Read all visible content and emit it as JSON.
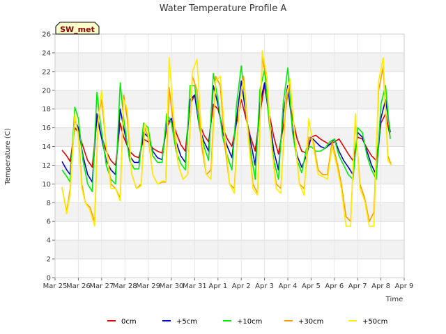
{
  "chart_data": {
    "type": "line",
    "title": "Water Temperature Profile A",
    "badge": "SW_met",
    "xlabel": "Time",
    "ylabel": "Temperature (C)",
    "ylim": [
      0,
      26
    ],
    "yticks": [
      0,
      2,
      4,
      6,
      8,
      10,
      12,
      14,
      16,
      18,
      20,
      22,
      24,
      26
    ],
    "xlim": [
      0,
      15
    ],
    "xtick_labels": [
      "Mar 25",
      "Mar 26",
      "Mar 27",
      "Mar 28",
      "Mar 29",
      "Mar 30",
      "Mar 31",
      "Apr 1",
      "Apr 2",
      "Apr 3",
      "Apr 4",
      "Apr 5",
      "Apr 6",
      "Apr 7",
      "Apr 8",
      "Apr 9"
    ],
    "x_unit": "days since Mar 25",
    "grid": true,
    "legend_position": "bottom",
    "series": [
      {
        "name": "0cm",
        "color": "#e00000",
        "x": [
          0.3,
          0.5,
          0.65,
          0.85,
          1.0,
          1.2,
          1.4,
          1.6,
          1.8,
          1.95,
          2.2,
          2.4,
          2.6,
          2.8,
          2.95,
          3.2,
          3.4,
          3.6,
          3.8,
          4.0,
          4.2,
          4.4,
          4.6,
          4.8,
          5.0,
          5.2,
          5.4,
          5.6,
          5.8,
          6.0,
          6.2,
          6.4,
          6.6,
          6.8,
          7.0,
          7.2,
          7.4,
          7.6,
          7.8,
          8.0,
          8.2,
          8.4,
          8.6,
          8.8,
          9.0,
          9.2,
          9.4,
          9.6,
          9.8,
          10.0,
          10.2,
          10.4,
          10.6,
          10.8,
          11.0,
          11.2,
          11.4,
          11.6,
          11.8,
          12.0,
          12.2,
          12.4,
          12.6,
          12.8,
          13.0,
          13.2,
          13.4,
          13.6,
          13.8,
          14.0,
          14.2,
          14.4
        ],
        "y": [
          13.6,
          13.0,
          12.4,
          16.0,
          15.5,
          14.0,
          12.5,
          11.8,
          17.0,
          15.5,
          13.5,
          12.5,
          12.0,
          16.5,
          15.0,
          13.5,
          13.0,
          12.8,
          14.8,
          14.5,
          13.8,
          13.5,
          13.3,
          16.0,
          17.0,
          15.5,
          14.2,
          13.5,
          18.5,
          19.5,
          16.5,
          15.2,
          14.5,
          18.5,
          18.0,
          16.0,
          14.8,
          14.0,
          16.5,
          19.0,
          17.0,
          15.0,
          13.5,
          17.5,
          20.5,
          17.5,
          15.0,
          13.2,
          16.0,
          20.0,
          17.0,
          14.8,
          13.5,
          13.3,
          15.0,
          15.2,
          14.8,
          14.5,
          14.2,
          14.5,
          14.8,
          14.0,
          13.2,
          12.5,
          15.0,
          14.8,
          13.8,
          13.0,
          12.5,
          16.5,
          17.5,
          15.0
        ]
      },
      {
        "name": "+5cm",
        "color": "#0000cc",
        "x": [
          0.3,
          0.5,
          0.65,
          0.85,
          1.0,
          1.2,
          1.4,
          1.6,
          1.8,
          1.95,
          2.2,
          2.4,
          2.6,
          2.8,
          2.95,
          3.2,
          3.4,
          3.6,
          3.8,
          4.0,
          4.2,
          4.4,
          4.6,
          4.8,
          5.0,
          5.2,
          5.4,
          5.6,
          5.8,
          6.0,
          6.2,
          6.4,
          6.6,
          6.8,
          7.0,
          7.2,
          7.4,
          7.6,
          7.8,
          8.0,
          8.2,
          8.4,
          8.6,
          8.8,
          9.0,
          9.2,
          9.4,
          9.6,
          9.8,
          10.0,
          10.2,
          10.4,
          10.6,
          10.8,
          11.0,
          11.2,
          11.4,
          11.6,
          11.8,
          12.0,
          12.2,
          12.4,
          12.6,
          12.8,
          13.0,
          13.2,
          13.4,
          13.6,
          13.8,
          14.0,
          14.2,
          14.4
        ],
        "y": [
          12.4,
          11.5,
          11.0,
          16.8,
          16.0,
          13.0,
          11.0,
          10.2,
          17.5,
          15.5,
          12.5,
          11.5,
          11.0,
          18.0,
          16.0,
          13.0,
          12.3,
          12.3,
          15.5,
          15.0,
          13.5,
          12.8,
          12.6,
          16.5,
          17.0,
          14.5,
          13.0,
          12.3,
          19.0,
          19.5,
          16.0,
          14.5,
          13.5,
          20.5,
          18.5,
          15.5,
          14.0,
          12.8,
          17.0,
          21.0,
          17.5,
          14.5,
          12.0,
          18.5,
          20.8,
          17.0,
          13.5,
          11.5,
          17.5,
          20.5,
          16.0,
          13.0,
          11.8,
          13.0,
          15.0,
          14.5,
          14.0,
          13.8,
          14.2,
          14.8,
          13.5,
          12.5,
          11.8,
          11.0,
          15.5,
          15.0,
          13.5,
          12.0,
          11.0,
          17.0,
          19.0,
          15.5
        ]
      },
      {
        "name": "+10cm",
        "color": "#00ee00",
        "x": [
          0.3,
          0.5,
          0.65,
          0.85,
          1.0,
          1.2,
          1.4,
          1.6,
          1.8,
          1.95,
          2.2,
          2.4,
          2.6,
          2.8,
          2.95,
          3.2,
          3.4,
          3.6,
          3.8,
          4.0,
          4.2,
          4.4,
          4.6,
          4.8,
          5.0,
          5.2,
          5.4,
          5.6,
          5.8,
          6.0,
          6.2,
          6.4,
          6.6,
          6.8,
          7.0,
          7.2,
          7.4,
          7.6,
          7.8,
          8.0,
          8.2,
          8.4,
          8.6,
          8.8,
          9.0,
          9.2,
          9.4,
          9.6,
          9.8,
          10.0,
          10.2,
          10.4,
          10.6,
          10.8,
          11.0,
          11.2,
          11.4,
          11.6,
          11.8,
          12.0,
          12.2,
          12.4,
          12.6,
          12.8,
          13.0,
          13.2,
          13.4,
          13.6,
          13.8,
          14.0,
          14.2,
          14.4
        ],
        "y": [
          11.5,
          10.8,
          10.2,
          18.2,
          17.0,
          12.5,
          10.0,
          9.2,
          19.8,
          16.5,
          12.0,
          10.5,
          10.0,
          20.8,
          17.0,
          12.5,
          11.6,
          11.6,
          16.5,
          16.0,
          13.0,
          12.3,
          12.3,
          17.5,
          16.5,
          13.5,
          12.2,
          11.5,
          20.5,
          20.5,
          16.0,
          14.0,
          12.5,
          21.8,
          19.0,
          15.0,
          13.0,
          11.5,
          18.5,
          22.6,
          18.0,
          13.5,
          10.5,
          20.0,
          22.2,
          16.5,
          12.5,
          10.5,
          18.5,
          22.4,
          15.5,
          12.5,
          11.2,
          13.8,
          14.0,
          13.5,
          13.5,
          13.8,
          14.5,
          14.8,
          13.0,
          12.0,
          11.0,
          10.5,
          16.0,
          15.5,
          13.0,
          11.5,
          10.5,
          18.5,
          20.5,
          14.8
        ]
      },
      {
        "name": "+30cm",
        "color": "#ff9900",
        "x": [
          0.3,
          0.5,
          0.65,
          0.85,
          1.0,
          1.15,
          1.3,
          1.5,
          1.7,
          1.85,
          2.0,
          2.2,
          2.4,
          2.6,
          2.8,
          2.95,
          3.1,
          3.3,
          3.5,
          3.7,
          3.85,
          4.0,
          4.2,
          4.4,
          4.6,
          4.75,
          4.9,
          5.1,
          5.3,
          5.5,
          5.7,
          5.9,
          6.1,
          6.3,
          6.5,
          6.7,
          6.9,
          7.1,
          7.3,
          7.5,
          7.7,
          7.9,
          8.1,
          8.3,
          8.5,
          8.7,
          8.9,
          9.1,
          9.3,
          9.5,
          9.7,
          9.9,
          10.1,
          10.3,
          10.5,
          10.7,
          10.9,
          11.1,
          11.3,
          11.5,
          11.7,
          11.9,
          12.1,
          12.3,
          12.5,
          12.7,
          12.9,
          13.1,
          13.3,
          13.5,
          13.7,
          13.9,
          14.1,
          14.3,
          14.45
        ],
        "y": [
          9.6,
          7.0,
          9.5,
          17.0,
          15.5,
          10.0,
          8.0,
          7.5,
          6.0,
          17.0,
          19.0,
          14.0,
          10.0,
          9.5,
          8.5,
          19.5,
          17.0,
          11.0,
          9.5,
          10.0,
          16.0,
          15.0,
          11.0,
          10.0,
          10.2,
          10.2,
          20.3,
          16.0,
          12.0,
          10.5,
          11.0,
          21.5,
          20.0,
          14.0,
          11.0,
          11.5,
          21.5,
          20.5,
          14.0,
          10.0,
          9.5,
          17.8,
          21.5,
          15.5,
          10.0,
          9.0,
          23.5,
          21.0,
          14.0,
          10.0,
          9.5,
          18.0,
          21.0,
          15.0,
          10.0,
          9.5,
          15.0,
          14.5,
          11.5,
          11.0,
          11.0,
          14.5,
          12.5,
          10.0,
          6.5,
          6.0,
          17.0,
          10.0,
          8.5,
          6.0,
          7.0,
          20.0,
          22.5,
          13.0,
          12.0
        ]
      },
      {
        "name": "+50cm",
        "color": "#ffee00",
        "x": [
          0.3,
          0.5,
          0.65,
          0.85,
          1.0,
          1.15,
          1.3,
          1.5,
          1.7,
          1.85,
          2.0,
          2.2,
          2.4,
          2.6,
          2.8,
          2.95,
          3.1,
          3.3,
          3.5,
          3.7,
          3.85,
          4.0,
          4.2,
          4.4,
          4.6,
          4.75,
          4.9,
          5.1,
          5.3,
          5.5,
          5.7,
          5.9,
          6.1,
          6.3,
          6.5,
          6.7,
          6.9,
          7.1,
          7.3,
          7.5,
          7.7,
          7.9,
          8.1,
          8.3,
          8.5,
          8.7,
          8.9,
          9.1,
          9.3,
          9.5,
          9.7,
          9.9,
          10.1,
          10.3,
          10.5,
          10.7,
          10.9,
          11.1,
          11.3,
          11.5,
          11.7,
          11.9,
          12.1,
          12.3,
          12.5,
          12.7,
          12.9,
          13.1,
          13.3,
          13.5,
          13.7,
          13.9,
          14.1,
          14.3,
          14.45
        ],
        "y": [
          9.7,
          6.8,
          9.0,
          17.5,
          15.0,
          9.5,
          8.0,
          7.2,
          5.5,
          16.5,
          20.0,
          14.0,
          9.5,
          9.5,
          8.2,
          19.0,
          18.0,
          11.0,
          9.5,
          9.8,
          16.5,
          15.5,
          11.0,
          10.0,
          10.3,
          10.3,
          23.5,
          17.0,
          12.0,
          10.5,
          11.0,
          22.0,
          23.3,
          15.0,
          11.0,
          10.5,
          21.0,
          21.5,
          15.0,
          10.0,
          9.0,
          18.0,
          21.0,
          15.0,
          9.5,
          8.8,
          24.2,
          21.5,
          14.0,
          9.5,
          9.0,
          19.0,
          21.2,
          15.0,
          10.0,
          8.8,
          17.0,
          14.0,
          11.0,
          10.8,
          10.5,
          14.0,
          12.0,
          9.5,
          5.5,
          5.5,
          17.5,
          9.5,
          8.2,
          5.5,
          5.5,
          21.0,
          23.5,
          12.5,
          12.0
        ]
      }
    ]
  }
}
